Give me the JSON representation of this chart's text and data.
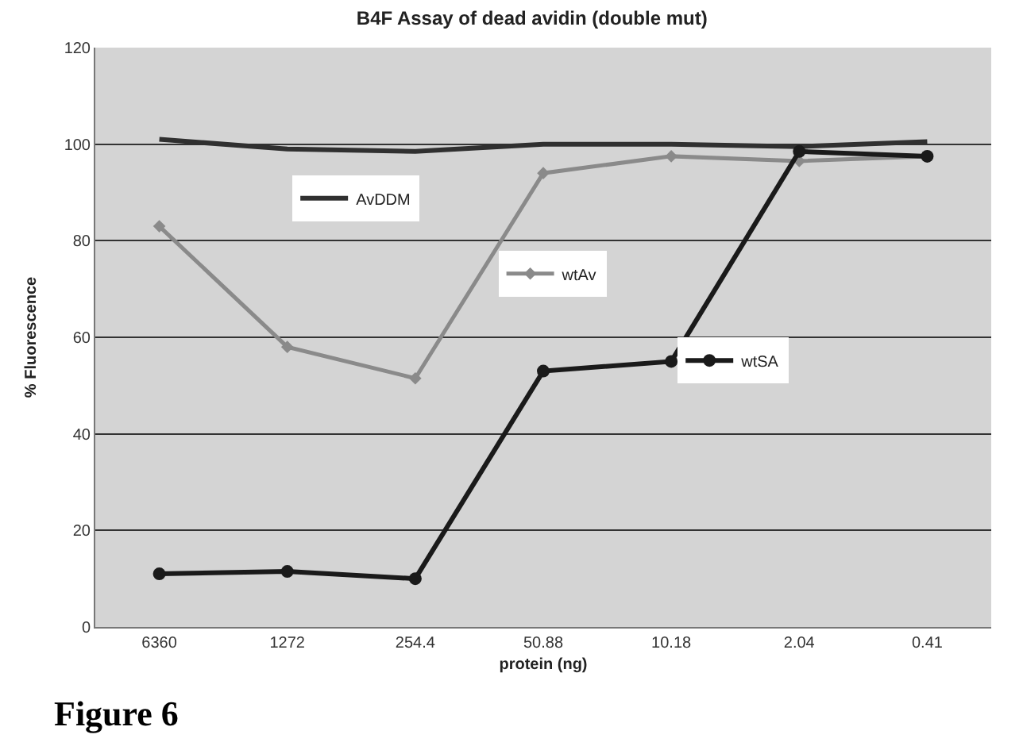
{
  "chart_data": {
    "type": "line",
    "title": "B4F Assay of dead avidin (double mut)",
    "xlabel": "protein (ng)",
    "ylabel": "% Fluorescence",
    "categories": [
      "6360",
      "1272",
      "254.4",
      "50.88",
      "10.18",
      "2.04",
      "0.41"
    ],
    "series": [
      {
        "name": "AvDDM",
        "color": "#303030",
        "marker": "none",
        "values": [
          101,
          99,
          98.5,
          100,
          100,
          99.5,
          100.5
        ]
      },
      {
        "name": "wtAv",
        "color": "#8a8a8a",
        "marker": "diamond",
        "values": [
          83,
          58,
          51.5,
          94,
          97.5,
          96.5,
          97.5
        ]
      },
      {
        "name": "wtSA",
        "color": "#1a1a1a",
        "marker": "circle",
        "values": [
          11,
          11.5,
          10,
          53,
          55,
          98.5,
          97.5
        ]
      }
    ],
    "ylim": [
      0,
      120
    ],
    "yticks": [
      0,
      20,
      40,
      60,
      80,
      100,
      120
    ],
    "grid": "y",
    "legend": "top left",
    "annotations": [
      "Figure 6"
    ]
  }
}
